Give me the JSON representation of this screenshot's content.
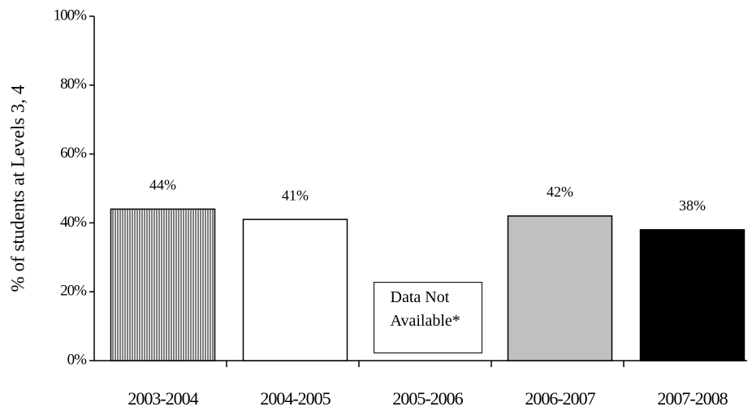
{
  "chart_data": {
    "type": "bar",
    "y_label": "% of students at Levels 3, 4",
    "categories": [
      "2003-2004",
      "2004-2005",
      "2005-2006",
      "2006-2007",
      "2007-2008"
    ],
    "values": [
      44,
      41,
      null,
      42,
      38
    ],
    "value_labels": [
      "44%",
      "41%",
      null,
      "42%",
      "38%"
    ],
    "colors": [
      "#808080",
      "#ffffff",
      null,
      "#c0c0c0",
      "#000000"
    ],
    "patterns": [
      "vertical-lines",
      "solid",
      null,
      "solid",
      "solid"
    ],
    "annotation": "Data Not Available*",
    "ylim": [
      0,
      100
    ],
    "yticks": [
      {
        "value": 0,
        "label": "0%"
      },
      {
        "value": 20,
        "label": "20%"
      },
      {
        "value": 40,
        "label": "40%"
      },
      {
        "value": 60,
        "label": "60%"
      },
      {
        "value": 80,
        "label": "80%"
      },
      {
        "value": 100,
        "label": "100%"
      }
    ],
    "grid": false
  }
}
